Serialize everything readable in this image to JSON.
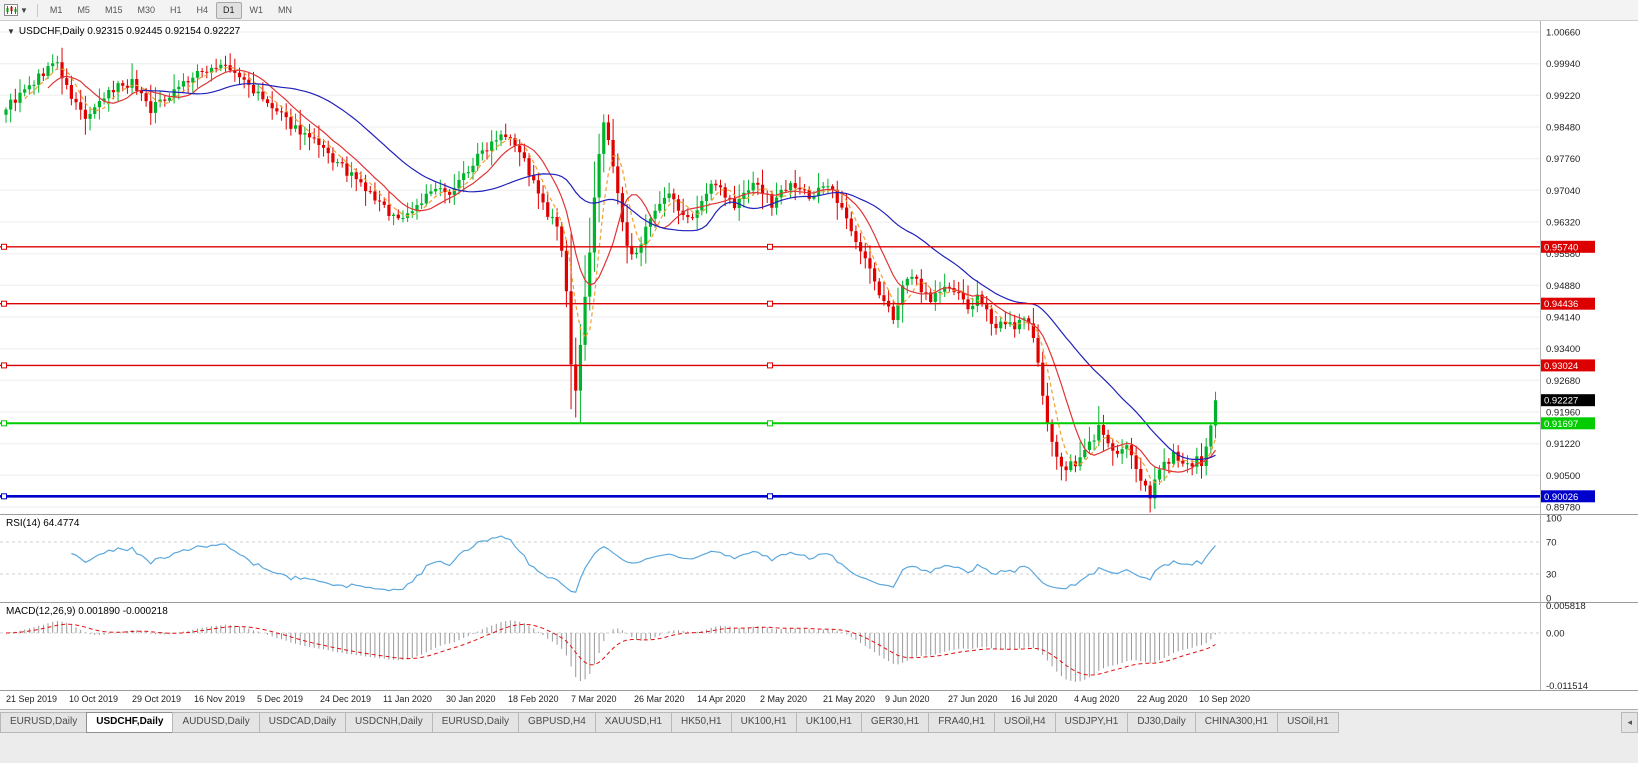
{
  "toolbar": {
    "timeframes": [
      "M1",
      "M5",
      "M15",
      "M30",
      "H1",
      "H4",
      "D1",
      "W1",
      "MN"
    ],
    "active_timeframe": "D1"
  },
  "chart": {
    "header": {
      "text": "USDCHF,Daily 0.92315 0.92445 0.92154 0.92227",
      "symbol": "USDCHF,Daily",
      "open": "0.92315",
      "high": "0.92445",
      "low": "0.92154",
      "close": "0.92227"
    },
    "axis": {
      "labels": [
        "1.00660",
        "0.99940",
        "0.99220",
        "0.98480",
        "0.97760",
        "0.97040",
        "0.96320",
        "0.95580",
        "0.94880",
        "0.94140",
        "0.93400",
        "0.92680",
        "0.91960",
        "0.91220",
        "0.90500",
        "0.89780"
      ],
      "top_value": 1.0066,
      "bottom_value": 0.8978
    },
    "hlines": [
      {
        "value": 0.9574,
        "label": "0.95740",
        "color": "#dd0000",
        "width": 1.4
      },
      {
        "value": 0.94436,
        "label": "0.94436",
        "color": "#dd0000",
        "width": 1.4
      },
      {
        "value": 0.93024,
        "label": "0.93024",
        "color": "#dd0000",
        "width": 1.4
      },
      {
        "value": 0.91697,
        "label": "0.91697",
        "color": "#00cc00",
        "width": 2
      },
      {
        "value": 0.90026,
        "label": "0.90026",
        "color": "#0000cc",
        "width": 2.6
      }
    ],
    "current_price": {
      "value": 0.92227,
      "label": "0.92227",
      "bg": "#000000"
    },
    "candles": {
      "count": 260,
      "spacing": 4.67,
      "up_color": "#00b32c",
      "down_color": "#e00000",
      "spike_lows": [
        {
          "index": 122,
          "price": 0.9183
        },
        {
          "index": 245,
          "price": 0.8995
        }
      ],
      "anchors": [
        [
          0,
          0.9895
        ],
        [
          3,
          0.992
        ],
        [
          6,
          0.995
        ],
        [
          9,
          0.9985
        ],
        [
          11,
          0.9995
        ],
        [
          13,
          0.9935
        ],
        [
          15,
          0.99
        ],
        [
          17,
          0.987
        ],
        [
          19,
          0.9885
        ],
        [
          21,
          0.9915
        ],
        [
          24,
          0.9945
        ],
        [
          27,
          0.995
        ],
        [
          29,
          0.9925
        ],
        [
          31,
          0.989
        ],
        [
          34,
          0.9915
        ],
        [
          37,
          0.9945
        ],
        [
          40,
          0.996
        ],
        [
          43,
          0.998
        ],
        [
          46,
          0.999
        ],
        [
          49,
          0.997
        ],
        [
          52,
          0.9945
        ],
        [
          54,
          0.992
        ],
        [
          57,
          0.989
        ],
        [
          60,
          0.9862
        ],
        [
          63,
          0.984
        ],
        [
          66,
          0.9812
        ],
        [
          69,
          0.9782
        ],
        [
          72,
          0.9755
        ],
        [
          75,
          0.9725
        ],
        [
          78,
          0.9695
        ],
        [
          81,
          0.9662
        ],
        [
          84,
          0.9638
        ],
        [
          86,
          0.965
        ],
        [
          89,
          0.968
        ],
        [
          92,
          0.9705
        ],
        [
          94,
          0.9692
        ],
        [
          97,
          0.9725
        ],
        [
          100,
          0.9765
        ],
        [
          103,
          0.9805
        ],
        [
          106,
          0.9838
        ],
        [
          108,
          0.983
        ],
        [
          110,
          0.9795
        ],
        [
          112,
          0.9745
        ],
        [
          114,
          0.9692
        ],
        [
          116,
          0.9645
        ],
        [
          118,
          0.962
        ],
        [
          119,
          0.9555
        ],
        [
          120,
          0.9465
        ],
        [
          121,
          0.9305
        ],
        [
          122,
          0.925
        ],
        [
          123,
          0.934
        ],
        [
          124,
          0.945
        ],
        [
          125,
          0.957
        ],
        [
          126,
          0.969
        ],
        [
          127,
          0.979
        ],
        [
          128,
          0.985
        ],
        [
          129,
          0.982
        ],
        [
          130,
          0.976
        ],
        [
          131,
          0.969
        ],
        [
          132,
          0.9625
        ],
        [
          133,
          0.9575
        ],
        [
          134,
          0.955
        ],
        [
          136,
          0.959
        ],
        [
          138,
          0.963
        ],
        [
          140,
          0.9665
        ],
        [
          142,
          0.969
        ],
        [
          144,
          0.966
        ],
        [
          146,
          0.9635
        ],
        [
          148,
          0.966
        ],
        [
          150,
          0.9695
        ],
        [
          152,
          0.9725
        ],
        [
          154,
          0.9695
        ],
        [
          156,
          0.9665
        ],
        [
          158,
          0.9695
        ],
        [
          160,
          0.9725
        ],
        [
          162,
          0.97
        ],
        [
          164,
          0.9672
        ],
        [
          166,
          0.97
        ],
        [
          168,
          0.9728
        ],
        [
          170,
          0.9705
        ],
        [
          172,
          0.9685
        ],
        [
          174,
          0.971
        ],
        [
          175,
          0.9718
        ],
        [
          177,
          0.9695
        ],
        [
          179,
          0.9655
        ],
        [
          181,
          0.9618
        ],
        [
          183,
          0.957
        ],
        [
          185,
          0.952
        ],
        [
          187,
          0.9465
        ],
        [
          189,
          0.943
        ],
        [
          190,
          0.9415
        ],
        [
          192,
          0.9475
        ],
        [
          194,
          0.951
        ],
        [
          196,
          0.948
        ],
        [
          198,
          0.9455
        ],
        [
          200,
          0.9475
        ],
        [
          202,
          0.948
        ],
        [
          204,
          0.946
        ],
        [
          206,
          0.9435
        ],
        [
          208,
          0.9455
        ],
        [
          210,
          0.942
        ],
        [
          212,
          0.9395
        ],
        [
          214,
          0.9405
        ],
        [
          216,
          0.938
        ],
        [
          217,
          0.94
        ],
        [
          218,
          0.942
        ],
        [
          220,
          0.936
        ],
        [
          221,
          0.93
        ],
        [
          222,
          0.924
        ],
        [
          223,
          0.918
        ],
        [
          224,
          0.913
        ],
        [
          225,
          0.909
        ],
        [
          226,
          0.9065
        ],
        [
          229,
          0.9075
        ],
        [
          231,
          0.9105
        ],
        [
          233,
          0.914
        ],
        [
          234,
          0.916
        ],
        [
          236,
          0.9125
        ],
        [
          238,
          0.9095
        ],
        [
          240,
          0.9115
        ],
        [
          242,
          0.906
        ],
        [
          244,
          0.903
        ],
        [
          245,
          0.9008
        ],
        [
          246,
          0.9045
        ],
        [
          248,
          0.9075
        ],
        [
          250,
          0.91
        ],
        [
          252,
          0.9075
        ],
        [
          254,
          0.906
        ],
        [
          255,
          0.9085
        ],
        [
          256,
          0.9075
        ],
        [
          257,
          0.911
        ],
        [
          258,
          0.9165
        ],
        [
          259,
          0.9223
        ]
      ]
    },
    "moving_averages": [
      {
        "period": 5,
        "color": "#f0a030",
        "dash": "4,3"
      },
      {
        "period": 10,
        "color": "#e03535",
        "dash": ""
      },
      {
        "period": 30,
        "color": "#2020bb",
        "dash": ""
      }
    ],
    "dates": [
      "21 Sep 2019",
      "10 Oct 2019",
      "29 Oct 2019",
      "16 Nov 2019",
      "5 Dec 2019",
      "24 Dec 2019",
      "11 Jan 2020",
      "30 Jan 2020",
      "18 Feb 2020",
      "7 Mar 2020",
      "26 Mar 2020",
      "14 Apr 2020",
      "2 May 2020",
      "21 May 2020",
      "9 Jun 2020",
      "27 Jun 2020",
      "16 Jul 2020",
      "4 Aug 2020",
      "22 Aug 2020",
      "10 Sep 2020"
    ]
  },
  "rsi": {
    "label": "RSI(14) 64.4774",
    "period": 14,
    "value": 64.4774,
    "axis_labels": [
      "100",
      "70",
      "30",
      "0"
    ],
    "levels": [
      70,
      30
    ],
    "line_color": "#5ba7dd"
  },
  "macd": {
    "label": "MACD(12,26,9) 0.001890 -0.000218",
    "fast": 12,
    "slow": 26,
    "signal_period": 9,
    "value": "0.001890",
    "signal_value": "-0.000218",
    "axis_labels": [
      "0.005818",
      "0.00",
      "-0.011514"
    ],
    "hist_color": "#999999",
    "signal_color": "#e01010"
  },
  "tabs": [
    {
      "label": "EURUSD,Daily",
      "active": false
    },
    {
      "label": "USDCHF,Daily",
      "active": true
    },
    {
      "label": "AUDUSD,Daily",
      "active": false
    },
    {
      "label": "USDCAD,Daily",
      "active": false
    },
    {
      "label": "USDCNH,Daily",
      "active": false
    },
    {
      "label": "EURUSD,Daily",
      "active": false
    },
    {
      "label": "GBPUSD,H4",
      "active": false
    },
    {
      "label": "XAUUSD,H1",
      "active": false
    },
    {
      "label": "HK50,H1",
      "active": false
    },
    {
      "label": "UK100,H1",
      "active": false
    },
    {
      "label": "UK100,H1",
      "active": false
    },
    {
      "label": "GER30,H1",
      "active": false
    },
    {
      "label": "FRA40,H1",
      "active": false
    },
    {
      "label": "USOil,H4",
      "active": false
    },
    {
      "label": "USDJPY,H1",
      "active": false
    },
    {
      "label": "DJ30,Daily",
      "active": false
    },
    {
      "label": "CHINA300,H1",
      "active": false
    },
    {
      "label": "USOil,H1",
      "active": false
    }
  ],
  "tab_scroll_icon": "◂"
}
